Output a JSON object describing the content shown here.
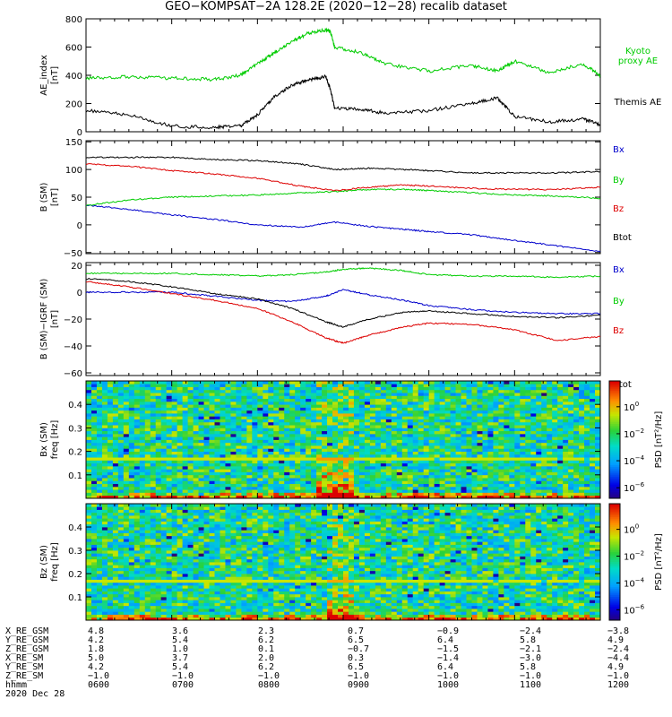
{
  "title": "GEO−KOMPSAT−2A 128.2E (2020−12−28) recalib dataset",
  "colors": {
    "black": "#000000",
    "red": "#dd0000",
    "green": "#00cc00",
    "blue": "#0000cc"
  },
  "panels": {
    "ae": {
      "ylabel": "AE_index\n[nT]",
      "legend": [
        {
          "text": "Kyoto\nproxy AE",
          "color": "#00cc00"
        },
        {
          "text": "Themis AE",
          "color": "#000000"
        }
      ]
    },
    "b": {
      "ylabel": "B (SM)\n[nT]",
      "legend": [
        {
          "text": "Bx",
          "color": "#0000cc"
        },
        {
          "text": "By",
          "color": "#00cc00"
        },
        {
          "text": "Bz",
          "color": "#dd0000"
        },
        {
          "text": "Btot",
          "color": "#000000"
        }
      ]
    },
    "db": {
      "ylabel": "B (SM)−IGRF (SM)\n[nT]",
      "legend": [
        {
          "text": "Bx",
          "color": "#0000cc"
        },
        {
          "text": "By",
          "color": "#00cc00"
        },
        {
          "text": "Bz",
          "color": "#dd0000"
        },
        {
          "text": "Btot",
          "color": "#000000"
        }
      ]
    },
    "specx": {
      "ylabel": "Bx (SM)\nfreq [Hz]",
      "colorbar_label": "PSD [nT²/Hz]"
    },
    "specz": {
      "ylabel": "Bz (SM)\nfreq [Hz]",
      "colorbar_label": "PSD [nT²/Hz]"
    }
  },
  "chart_data": [
    {
      "id": "ae",
      "type": "line",
      "title": "GEO−KOMPSAT−2A 128.2E (2020−12−28) recalib dataset",
      "xlabel": "",
      "ylabel": "AE_index [nT]",
      "xlim": [
        6,
        12
      ],
      "ylim": [
        0,
        800
      ],
      "yticks": [
        0,
        200,
        400,
        600,
        800
      ],
      "ytick_labels": [
        "0",
        "200",
        "400",
        "600",
        "800"
      ],
      "x": [
        6.0,
        6.5,
        7.0,
        7.5,
        7.8,
        8.0,
        8.2,
        8.4,
        8.6,
        8.8,
        8.85,
        8.9,
        9.2,
        9.5,
        10.0,
        10.5,
        10.8,
        11.0,
        11.4,
        11.8,
        12.0
      ],
      "series": [
        {
          "name": "Kyoto proxy AE",
          "color": "#00cc00",
          "values": [
            380,
            390,
            380,
            370,
            400,
            480,
            560,
            640,
            700,
            720,
            710,
            600,
            560,
            480,
            430,
            470,
            430,
            500,
            420,
            480,
            400
          ]
        },
        {
          "name": "Themis AE",
          "color": "#000000",
          "values": [
            150,
            120,
            40,
            30,
            40,
            120,
            250,
            330,
            370,
            390,
            300,
            170,
            160,
            130,
            150,
            200,
            240,
            110,
            70,
            90,
            50
          ]
        }
      ]
    },
    {
      "id": "b",
      "type": "line",
      "xlabel": "",
      "ylabel": "B (SM) [nT]",
      "xlim": [
        6,
        12
      ],
      "ylim": [
        -52,
        152
      ],
      "yticks": [
        -50,
        0,
        50,
        100,
        150
      ],
      "ytick_labels": [
        "−50",
        "0",
        "50",
        "100",
        "150"
      ],
      "x": [
        6.0,
        6.5,
        7.0,
        7.5,
        8.0,
        8.5,
        8.9,
        9.3,
        9.7,
        10.0,
        10.5,
        11.0,
        11.5,
        12.0
      ],
      "series": [
        {
          "name": "Bx",
          "color": "#0000cc",
          "values": [
            36,
            28,
            18,
            10,
            0,
            -4,
            5,
            -3,
            -8,
            -12,
            -18,
            -28,
            -38,
            -48
          ]
        },
        {
          "name": "By",
          "color": "#00cc00",
          "values": [
            35,
            45,
            50,
            52,
            54,
            58,
            60,
            64,
            64,
            62,
            58,
            54,
            52,
            48
          ]
        },
        {
          "name": "Bz",
          "color": "#dd0000",
          "values": [
            110,
            106,
            98,
            92,
            84,
            70,
            62,
            68,
            72,
            70,
            66,
            64,
            64,
            68
          ]
        },
        {
          "name": "Btot",
          "color": "#000000",
          "values": [
            122,
            122,
            122,
            118,
            116,
            110,
            100,
            102,
            100,
            98,
            94,
            94,
            94,
            96
          ]
        }
      ]
    },
    {
      "id": "db",
      "type": "line",
      "xlabel": "",
      "ylabel": "B (SM)−IGRF (SM) [nT]",
      "xlim": [
        6,
        12
      ],
      "ylim": [
        -62,
        22
      ],
      "yticks": [
        -60,
        -40,
        -20,
        0,
        20
      ],
      "ytick_labels": [
        "−60",
        "−40",
        "−20",
        "0",
        "20"
      ],
      "x": [
        6.0,
        6.5,
        7.0,
        7.5,
        8.0,
        8.4,
        8.8,
        9.0,
        9.3,
        9.7,
        10.0,
        10.5,
        11.0,
        11.5,
        12.0
      ],
      "series": [
        {
          "name": "Bx",
          "color": "#0000cc",
          "values": [
            0,
            0,
            0,
            -3,
            -6,
            -7,
            -3,
            2,
            -2,
            -6,
            -10,
            -13,
            -15,
            -16,
            -16
          ]
        },
        {
          "name": "By",
          "color": "#00cc00",
          "values": [
            14,
            14,
            14,
            13,
            12,
            13,
            15,
            17,
            18,
            16,
            13,
            12,
            12,
            11,
            12
          ]
        },
        {
          "name": "Bz",
          "color": "#dd0000",
          "values": [
            8,
            4,
            -1,
            -6,
            -12,
            -22,
            -34,
            -38,
            -32,
            -26,
            -23,
            -24,
            -28,
            -36,
            -33
          ]
        },
        {
          "name": "Btot",
          "color": "#000000",
          "values": [
            10,
            8,
            4,
            -1,
            -5,
            -12,
            -22,
            -26,
            -20,
            -15,
            -14,
            -16,
            -18,
            -19,
            -17
          ]
        }
      ]
    },
    {
      "id": "specx",
      "type": "heatmap",
      "xlabel": "",
      "ylabel": "Bx (SM) freq [Hz]",
      "xlim": [
        6,
        12
      ],
      "ylim": [
        0,
        0.5
      ],
      "yticks": [
        0.1,
        0.2,
        0.3,
        0.4
      ],
      "ytick_labels": [
        "0.1",
        "0.2",
        "0.3",
        "0.4"
      ],
      "colorbar": {
        "label": "PSD [nT²/Hz]",
        "scale": "log",
        "ticks": [
          {
            "mant": "10",
            "exp": "0"
          },
          {
            "mant": "10",
            "exp": "−2"
          },
          {
            "mant": "10",
            "exp": "−4"
          },
          {
            "mant": "10",
            "exp": "−6"
          }
        ]
      },
      "features": {
        "enhancement_hours": [
          8.7,
          9.1
        ],
        "enhancement_freq_max": 0.2,
        "line_freq": 0.17
      }
    },
    {
      "id": "specz",
      "type": "heatmap",
      "xlabel": "",
      "ylabel": "Bz (SM) freq [Hz]",
      "xlim": [
        6,
        12
      ],
      "ylim": [
        0,
        0.5
      ],
      "yticks": [
        0.1,
        0.2,
        0.3,
        0.4
      ],
      "ytick_labels": [
        "0.1",
        "0.2",
        "0.3",
        "0.4"
      ],
      "colorbar": {
        "label": "PSD [nT²/Hz]",
        "scale": "log",
        "ticks": [
          {
            "mant": "10",
            "exp": "0"
          },
          {
            "mant": "10",
            "exp": "−2"
          },
          {
            "mant": "10",
            "exp": "−4"
          },
          {
            "mant": "10",
            "exp": "−6"
          }
        ]
      },
      "features": {
        "enhancement_hours": [
          8.8,
          9.1
        ],
        "enhancement_freq_max": 0.15,
        "line_freq": 0.17
      }
    }
  ],
  "ephemeris": {
    "rows": [
      {
        "label": "X_RE_GSM",
        "values": [
          "4.8",
          "3.6",
          "2.3",
          "0.7",
          "−0.9",
          "−2.4",
          "−3.8"
        ]
      },
      {
        "label": "Y_RE_GSM",
        "values": [
          "4.2",
          "5.4",
          "6.2",
          "6.5",
          "6.4",
          "5.8",
          "4.9"
        ]
      },
      {
        "label": "Z_RE_GSM",
        "values": [
          "1.8",
          "1.0",
          "0.1",
          "−0.7",
          "−1.5",
          "−2.1",
          "−2.4"
        ]
      },
      {
        "label": "X_RE_SM",
        "values": [
          "5.0",
          "3.7",
          "2.0",
          "0.3",
          "−1.4",
          "−3.0",
          "−4.4"
        ]
      },
      {
        "label": "Y_RE_SM",
        "values": [
          "4.2",
          "5.4",
          "6.2",
          "6.5",
          "6.4",
          "5.8",
          "4.9"
        ]
      },
      {
        "label": "Z_RE_SM",
        "values": [
          "−1.0",
          "−1.0",
          "−1.0",
          "−1.0",
          "−1.0",
          "−1.0",
          "−1.0"
        ]
      },
      {
        "label": "hhmm",
        "values": [
          "0600",
          "0700",
          "0800",
          "0900",
          "1000",
          "1100",
          "1200"
        ]
      }
    ],
    "date": "2020 Dec 28"
  }
}
